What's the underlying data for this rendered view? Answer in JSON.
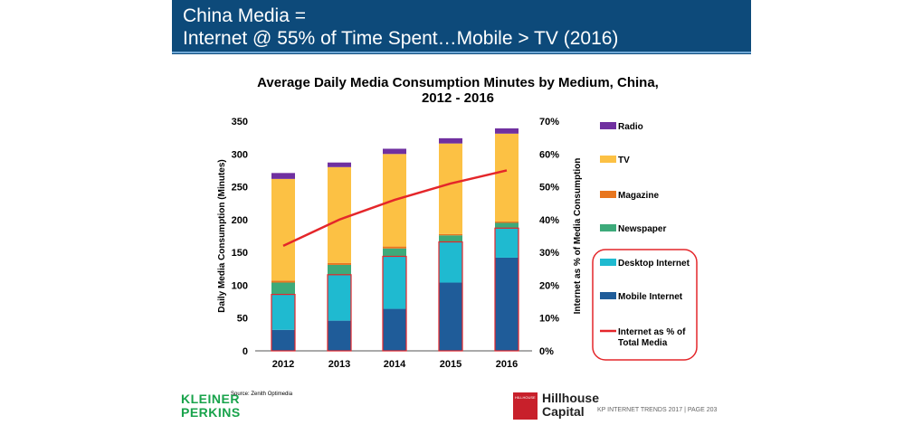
{
  "header": {
    "line1": "China Media =",
    "line2": "Internet @ 55% of Time Spent…Mobile > TV (2016)"
  },
  "footer": {
    "kp_line1": "KLEINER",
    "kp_line2": "PERKINS",
    "source": "Source: Zenith Optimedia",
    "hillhouse_line1": "Hillhouse",
    "hillhouse_line2": "Capital",
    "hillhouse_logo_text": "HILLHOUSE",
    "trends": "KP INTERNET TRENDS 2017  |  PAGE 203"
  },
  "colors": {
    "header_bg": "#0d4a7a",
    "mobile": "#1f5c99",
    "desktop": "#1fbad0",
    "newspaper": "#3daa7a",
    "magazine": "#e8761e",
    "tv": "#fcc144",
    "radio": "#7030a0",
    "line": "#e4262a",
    "internet_outline": "#e4262a"
  },
  "chart_data": {
    "type": "bar",
    "stacked": true,
    "title_line1": "Average Daily Media Consumption Minutes by Medium, China,",
    "title_line2": "2012 - 2016",
    "ylabel": "Daily Media Consumption (Minutes)",
    "y2label": "Internet as % of Media Consumption",
    "ylim": [
      0,
      350
    ],
    "y2lim": [
      0,
      70
    ],
    "yticks": [
      "0",
      "50",
      "100",
      "150",
      "200",
      "250",
      "300",
      "350"
    ],
    "y2ticks": [
      "0%",
      "10%",
      "20%",
      "30%",
      "40%",
      "50%",
      "60%",
      "70%"
    ],
    "categories": [
      "2012",
      "2013",
      "2014",
      "2015",
      "2016"
    ],
    "series": [
      {
        "name": "Mobile Internet",
        "values": [
          32,
          46,
          64,
          104,
          142
        ]
      },
      {
        "name": "Desktop Internet",
        "values": [
          54,
          70,
          80,
          62,
          45
        ]
      },
      {
        "name": "Newspaper",
        "values": [
          18,
          15,
          12,
          10,
          8
        ]
      },
      {
        "name": "Magazine",
        "values": [
          3,
          3,
          3,
          2,
          2
        ]
      },
      {
        "name": "TV",
        "values": [
          155,
          146,
          141,
          138,
          134
        ]
      },
      {
        "name": "Radio",
        "values": [
          9,
          7,
          8,
          8,
          8
        ]
      }
    ],
    "line_series": {
      "name": "Internet as % of Total Media",
      "axis": "right",
      "values": [
        32,
        40,
        46,
        51,
        55
      ]
    },
    "legend_items": [
      {
        "name": "Radio",
        "color": "#7030a0"
      },
      {
        "name": "TV",
        "color": "#fcc144"
      },
      {
        "name": "Magazine",
        "color": "#e8761e"
      },
      {
        "name": "Newspaper",
        "color": "#3daa7a"
      },
      {
        "name": "Desktop Internet",
        "color": "#1fbad0"
      },
      {
        "name": "Mobile Internet",
        "color": "#1f5c99"
      },
      {
        "name": "Internet as % of Total Media",
        "color": "#e4262a"
      }
    ],
    "legend_position": "right",
    "grid": false
  }
}
